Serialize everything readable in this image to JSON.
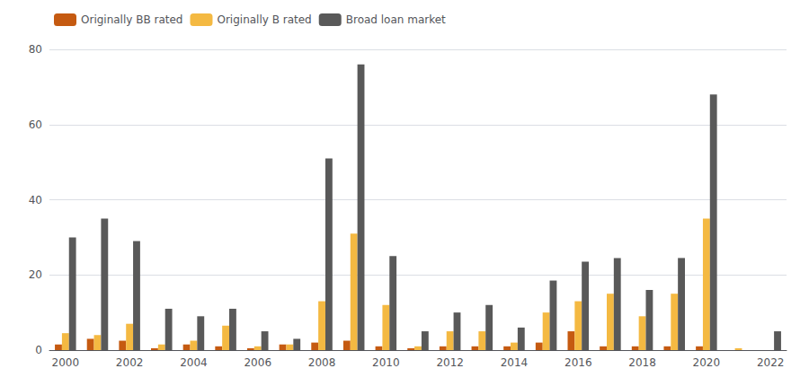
{
  "chart_data": {
    "type": "bar",
    "categories": [
      "2000",
      null,
      "2002",
      null,
      "2004",
      null,
      "2006",
      null,
      "2008",
      null,
      "2010",
      null,
      "2012",
      null,
      "2014",
      null,
      "2016",
      null,
      "2018",
      null,
      "2020",
      null,
      "2022"
    ],
    "series": [
      {
        "name": "Originally BB rated",
        "color": "#c55a11",
        "values": [
          1.5,
          3.0,
          2.5,
          0.5,
          1.5,
          1.0,
          0.5,
          1.5,
          2.0,
          2.5,
          1.0,
          0.5,
          1.0,
          1.0,
          1.0,
          2.0,
          5.0,
          1.0,
          1.0,
          1.0,
          1.0,
          0.0,
          0.0
        ]
      },
      {
        "name": "Originally B rated",
        "color": "#f4b942",
        "values": [
          4.5,
          4.0,
          7.0,
          1.5,
          2.5,
          6.5,
          1.0,
          1.5,
          13.0,
          31.0,
          12.0,
          1.0,
          5.0,
          5.0,
          2.0,
          10.0,
          13.0,
          15.0,
          9.0,
          15.0,
          35.0,
          0.5,
          0.0
        ]
      },
      {
        "name": "Broad loan market",
        "color": "#595959",
        "values": [
          30.0,
          35.0,
          29.0,
          11.0,
          9.0,
          11.0,
          5.0,
          3.0,
          51.0,
          76.0,
          25.0,
          5.0,
          10.0,
          12.0,
          6.0,
          18.5,
          23.5,
          24.5,
          16.0,
          24.5,
          68.0,
          0.0,
          5.0
        ]
      }
    ],
    "ylim": [
      0,
      80
    ],
    "yticks": [
      0,
      20,
      40,
      60,
      80
    ],
    "grid": true,
    "legend": "top-left"
  }
}
